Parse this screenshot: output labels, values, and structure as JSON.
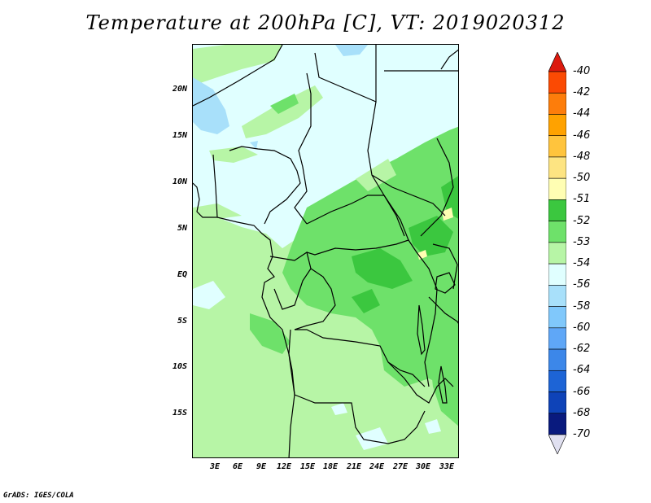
{
  "title": "Temperature at 200hPa [C], VT: 2019020312",
  "credit": "GrADS: IGES/COLA",
  "lat_labels": [
    "20N",
    "15N",
    "10N",
    "5N",
    "EQ",
    "5S",
    "10S",
    "15S"
  ],
  "lon_labels": [
    "3E",
    "6E",
    "9E",
    "12E",
    "15E",
    "18E",
    "21E",
    "24E",
    "27E",
    "30E",
    "33E"
  ],
  "colorbar": {
    "labels": [
      "-40",
      "-42",
      "-44",
      "-46",
      "-48",
      "-50",
      "-51",
      "-52",
      "-53",
      "-54",
      "-56",
      "-58",
      "-60",
      "-62",
      "-64",
      "-66",
      "-68",
      "-70"
    ],
    "colors": [
      "#e8170d",
      "#fb4a03",
      "#fd7d0b",
      "#ffa200",
      "#ffc43d",
      "#fde482",
      "#fffeb3",
      "#3bc73f",
      "#6ee16a",
      "#b7f5a6",
      "#e0ffff",
      "#a8e0fa",
      "#80c8fb",
      "#5fa7f7",
      "#3c87e9",
      "#1d64d6",
      "#0e43b8",
      "#091a7e",
      "#0a0a56"
    ],
    "arrow_top_color": "#dc1a0e",
    "arrow_bottom_color": "#e0e0f0"
  },
  "map": {
    "background_color": "#e0ffff",
    "lat_range": [
      -19.5,
      24.5
    ],
    "lon_range": [
      0,
      34.5
    ]
  }
}
